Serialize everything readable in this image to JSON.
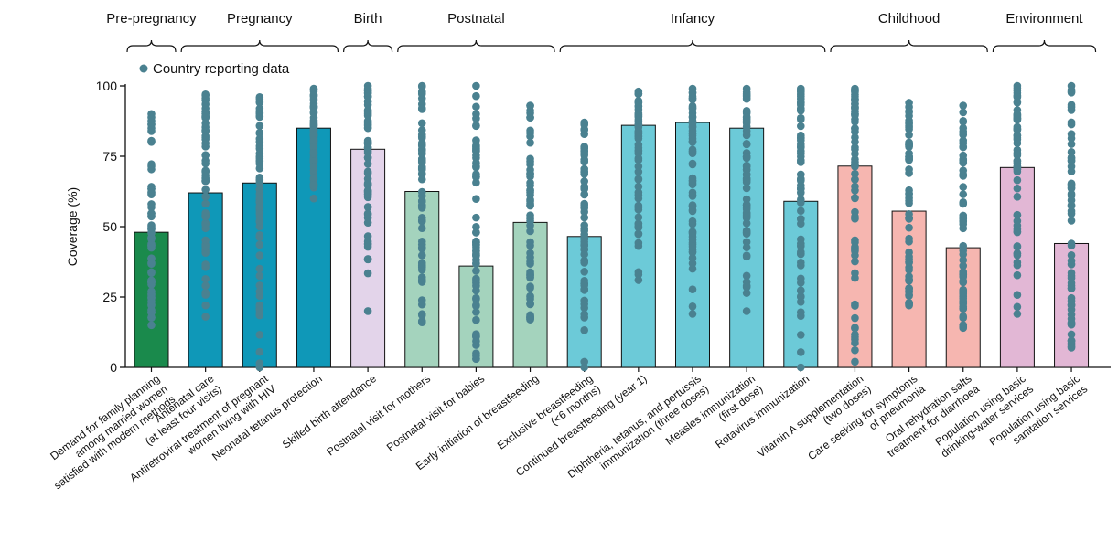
{
  "chart_data": {
    "type": "bar",
    "ylabel": "Coverage (%)",
    "ylim": [
      0,
      100
    ],
    "yticks": [
      0,
      25,
      50,
      75,
      100
    ],
    "legend": {
      "label": "Country reporting data",
      "position": "top-left"
    },
    "point_color": "#4a8190",
    "groups": [
      {
        "label": "Pre-pregnancy",
        "from": 0,
        "to": 0
      },
      {
        "label": "Pregnancy",
        "from": 1,
        "to": 3
      },
      {
        "label": "Birth",
        "from": 4,
        "to": 4
      },
      {
        "label": "Postnatal",
        "from": 5,
        "to": 7
      },
      {
        "label": "Infancy",
        "from": 8,
        "to": 12
      },
      {
        "label": "Childhood",
        "from": 13,
        "to": 15
      },
      {
        "label": "Environment",
        "from": 16,
        "to": 17
      }
    ],
    "categories": [
      {
        "lines": [
          "Demand for family planning",
          "among married women",
          "satisfied with modern methods"
        ],
        "value": 48,
        "color": "#1a8a4c",
        "range": [
          15,
          90
        ]
      },
      {
        "lines": [
          "Antenatal care",
          "(at least four visits)"
        ],
        "value": 62,
        "color": "#0f98b8",
        "range": [
          18,
          97
        ]
      },
      {
        "lines": [
          "Antiretroviral treatment of pregnant",
          "women living with HIV"
        ],
        "value": 65.5,
        "color": "#0f98b8",
        "range": [
          0,
          96
        ]
      },
      {
        "lines": [
          "Neonatal tetanus protection"
        ],
        "value": 85,
        "color": "#0f98b8",
        "range": [
          60,
          99
        ]
      },
      {
        "lines": [
          "Skilled birth attendance"
        ],
        "value": 77.5,
        "color": "#e3d4ea",
        "range": [
          20,
          100
        ]
      },
      {
        "lines": [
          "Postnatal visit for mothers"
        ],
        "value": 62.5,
        "color": "#a4d3bd",
        "range": [
          16,
          100
        ]
      },
      {
        "lines": [
          "Postnatal visit for babies"
        ],
        "value": 36,
        "color": "#a4d3bd",
        "range": [
          3,
          100
        ]
      },
      {
        "lines": [
          "Early initiation of breastfeeding"
        ],
        "value": 51.5,
        "color": "#a4d3bd",
        "range": [
          17,
          93
        ]
      },
      {
        "lines": [
          "Exclusive breastfeeding",
          "(<6 months)"
        ],
        "value": 46.5,
        "color": "#6ccad8",
        "range": [
          0,
          87
        ]
      },
      {
        "lines": [
          "Continued breastfeeding (year 1)"
        ],
        "value": 86,
        "color": "#6ccad8",
        "range": [
          31,
          98
        ]
      },
      {
        "lines": [
          "Diphtheria, tetanus, and pertussis",
          "immunization (three doses)"
        ],
        "value": 87,
        "color": "#6ccad8",
        "range": [
          19,
          99
        ]
      },
      {
        "lines": [
          "Measles immunization",
          "(first dose)"
        ],
        "value": 85,
        "color": "#6ccad8",
        "range": [
          20,
          99
        ]
      },
      {
        "lines": [
          "Rotavirus immunization"
        ],
        "value": 59,
        "color": "#6ccad8",
        "range": [
          0,
          99
        ]
      },
      {
        "lines": [
          "Vitamin A supplementation",
          "(two doses)"
        ],
        "value": 71.5,
        "color": "#f6b6b0",
        "range": [
          2,
          99
        ]
      },
      {
        "lines": [
          "Care seeking for symptoms",
          "of pneumonia"
        ],
        "value": 55.5,
        "color": "#f6b6b0",
        "range": [
          22,
          94
        ]
      },
      {
        "lines": [
          "Oral rehydration salts",
          "treatment for diarrhoea"
        ],
        "value": 42.5,
        "color": "#f6b6b0",
        "range": [
          14,
          93
        ]
      },
      {
        "lines": [
          "Population using basic",
          "drinking-water services"
        ],
        "value": 71,
        "color": "#e2b7d5",
        "range": [
          19,
          100
        ]
      },
      {
        "lines": [
          "Population using basic",
          "sanitation services"
        ],
        "value": 44,
        "color": "#e2b7d5",
        "range": [
          7,
          100
        ]
      }
    ]
  }
}
